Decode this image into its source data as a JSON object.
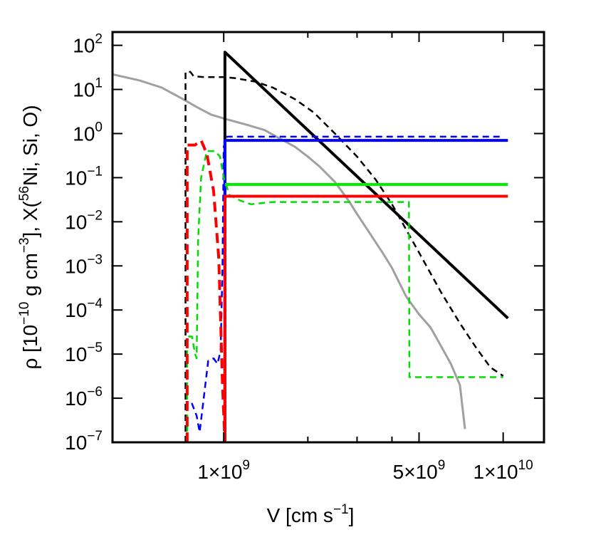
{
  "chart_data": {
    "type": "line",
    "xlabel": {
      "text": "V [cm s",
      "sup": "−1",
      "tail": "]"
    },
    "ylabel": {
      "part1": "ρ [10",
      "sup1": "−10",
      "part2": " g cm",
      "sup2": "−3",
      "part3": "], X(",
      "sup3": "56",
      "part4": "Ni, Si, O)"
    },
    "x_scale": "log",
    "y_scale": "log",
    "xlim": [
      400000000.0,
      14000000000.0
    ],
    "ylim": [
      1e-07,
      200
    ],
    "x_ticks": [
      {
        "value": 1000000000.0,
        "label": "1×10",
        "sup": "9"
      },
      {
        "value": 5000000000.0,
        "label": "5×10",
        "sup": "9"
      },
      {
        "value": 10000000000.0,
        "label": "1×10",
        "sup": "10"
      }
    ],
    "x_minor_ticks": [
      2000000000.0,
      3000000000.0,
      4000000000.0
    ],
    "y_ticks": [
      {
        "value": 100,
        "label": "10",
        "sup": "2"
      },
      {
        "value": 10,
        "label": "10",
        "sup": "1"
      },
      {
        "value": 1,
        "label": "10",
        "sup": "0"
      },
      {
        "value": 0.1,
        "label": "10",
        "sup": "−1"
      },
      {
        "value": 0.01,
        "label": "10",
        "sup": "−2"
      },
      {
        "value": 0.001,
        "label": "10",
        "sup": "−3"
      },
      {
        "value": 0.0001,
        "label": "10",
        "sup": "−4"
      },
      {
        "value": 1e-05,
        "label": "10",
        "sup": "−5"
      },
      {
        "value": 1e-06,
        "label": "10",
        "sup": "−6"
      },
      {
        "value": 1e-07,
        "label": "10",
        "sup": "−7"
      }
    ],
    "grid": false,
    "series": [
      {
        "color": "#a0a0a0",
        "dash": "solid",
        "width": 3,
        "points": [
          [
            400000000.0,
            22
          ],
          [
            500000000.0,
            16
          ],
          [
            600000000.0,
            11
          ],
          [
            700000000.0,
            6.5
          ],
          [
            800000000.0,
            4
          ],
          [
            900000000.0,
            2.7
          ],
          [
            1000000000.0,
            2.2
          ],
          [
            1200000000.0,
            1.6
          ],
          [
            1400000000.0,
            1.2
          ],
          [
            1600000000.0,
            0.75
          ],
          [
            1800000000.0,
            0.5
          ],
          [
            2000000000.0,
            0.3
          ],
          [
            2200000000.0,
            0.18
          ],
          [
            2500000000.0,
            0.08
          ],
          [
            2800000000.0,
            0.03
          ],
          [
            3000000000.0,
            0.015
          ],
          [
            3300000000.0,
            0.006
          ],
          [
            3700000000.0,
            0.002
          ],
          [
            4000000000.0,
            0.0009
          ],
          [
            4500000000.0,
            0.0002
          ],
          [
            5000000000.0,
            8e-05
          ],
          [
            5500000000.0,
            4e-05
          ],
          [
            6000000000.0,
            1.5e-05
          ],
          [
            6500000000.0,
            6e-06
          ],
          [
            7000000000.0,
            2e-06
          ],
          [
            7300000000.0,
            2e-07
          ]
        ]
      },
      {
        "color": "#000000",
        "dash": "dashed",
        "width": 2.5,
        "points": [
          [
            730000000.0,
            1e-07
          ],
          [
            730000000.0,
            25
          ],
          [
            760000000.0,
            25
          ],
          [
            780000000.0,
            20
          ],
          [
            850000000.0,
            19
          ],
          [
            1000000000.0,
            19
          ],
          [
            1100000000.0,
            18
          ],
          [
            1300000000.0,
            15
          ],
          [
            1500000000.0,
            11
          ],
          [
            1800000000.0,
            6
          ],
          [
            2100000000.0,
            3
          ],
          [
            2500000000.0,
            1
          ],
          [
            3000000000.0,
            0.3
          ],
          [
            3500000000.0,
            0.09
          ],
          [
            4000000000.0,
            0.025
          ],
          [
            5000000000.0,
            0.002
          ],
          [
            6000000000.0,
            0.00025
          ],
          [
            7000000000.0,
            5e-05
          ],
          [
            8000000000.0,
            1.4e-05
          ],
          [
            9000000000.0,
            5e-06
          ],
          [
            10000000000.0,
            3.2e-06
          ]
        ]
      },
      {
        "color": "#000000",
        "dash": "solid",
        "width": 4,
        "points": [
          [
            1010000000.0,
            1e-07
          ],
          [
            1010000000.0,
            70
          ],
          [
            10400000000.0,
            6.5e-05
          ]
        ]
      },
      {
        "color": "#0000ff",
        "dash": "dashed",
        "width": 2.5,
        "points": [
          [
            740000000.0,
            1e-07
          ],
          [
            740000000.0,
            7.5e-07
          ],
          [
            770000000.0,
            7.5e-07
          ],
          [
            800000000.0,
            4e-07
          ],
          [
            820000000.0,
            1.7e-07
          ],
          [
            840000000.0,
            6e-07
          ],
          [
            880000000.0,
            7e-06
          ],
          [
            920000000.0,
            8e-06
          ],
          [
            950000000.0,
            6e-06
          ],
          [
            975000000.0,
            1.2e-05
          ],
          [
            990000000.0,
            0.001
          ],
          [
            1000000000.0,
            0.5
          ],
          [
            1030000000.0,
            0.85
          ],
          [
            1200000000.0,
            0.85
          ],
          [
            10000000000.0,
            0.85
          ]
        ]
      },
      {
        "color": "#0000ff",
        "dash": "solid",
        "width": 4,
        "points": [
          [
            1010000000.0,
            1e-07
          ],
          [
            1010000000.0,
            0.7
          ],
          [
            10400000000.0,
            0.7
          ]
        ]
      },
      {
        "color": "#00dd00",
        "dash": "dashed",
        "width": 2.5,
        "points": [
          [
            740000000.0,
            1e-07
          ],
          [
            740000000.0,
            2.5e-05
          ],
          [
            770000000.0,
            2.5e-05
          ],
          [
            790000000.0,
            1e-05
          ],
          [
            800000000.0,
            8e-06
          ],
          [
            810000000.0,
            0.004
          ],
          [
            830000000.0,
            0.1
          ],
          [
            870000000.0,
            0.4
          ],
          [
            930000000.0,
            0.4
          ],
          [
            970000000.0,
            0.3
          ],
          [
            1000000000.0,
            0.1
          ],
          [
            1050000000.0,
            0.04
          ],
          [
            1150000000.0,
            0.03
          ],
          [
            1250000000.0,
            0.025
          ],
          [
            1500000000.0,
            0.028
          ],
          [
            4600000000.0,
            0.028
          ],
          [
            4620000000.0,
            3e-06
          ],
          [
            10000000000.0,
            3e-06
          ]
        ]
      },
      {
        "color": "#00ee00",
        "dash": "solid",
        "width": 4,
        "points": [
          [
            1010000000.0,
            0.07
          ],
          [
            10400000000.0,
            0.07
          ]
        ]
      },
      {
        "color": "#ff0000",
        "dash": "dashed",
        "width": 4,
        "points": [
          [
            740000000.0,
            1e-07
          ],
          [
            740000000.0,
            0.55
          ],
          [
            790000000.0,
            0.55
          ],
          [
            830000000.0,
            0.7
          ],
          [
            870000000.0,
            0.35
          ],
          [
            920000000.0,
            0.05
          ],
          [
            960000000.0,
            0.0015
          ],
          [
            990000000.0,
            2e-06
          ],
          [
            1010000000.0,
            1e-07
          ]
        ]
      },
      {
        "color": "#ff0000",
        "dash": "solid",
        "width": 4,
        "points": [
          [
            1010000000.0,
            1e-07
          ],
          [
            1010000000.0,
            0.038
          ],
          [
            10400000000.0,
            0.038
          ]
        ]
      }
    ]
  }
}
